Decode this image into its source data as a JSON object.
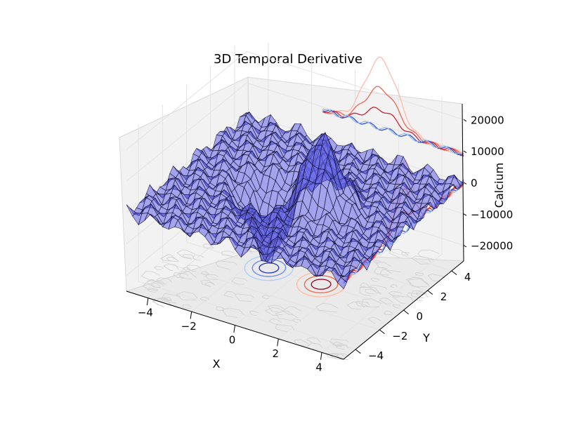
{
  "chart_data": {
    "type": "surface3d",
    "title": "3D Temporal Derivative",
    "xlabel": "X",
    "ylabel": "Y",
    "zlabel": "Calcium",
    "xlim": [
      -5,
      5
    ],
    "ylim": [
      -5,
      5
    ],
    "zlim": [
      -25000,
      25000
    ],
    "x_ticks": [
      "−4",
      "−2",
      "0",
      "2",
      "4"
    ],
    "x_tick_values": [
      -4,
      -2,
      0,
      2,
      4
    ],
    "y_ticks": [
      "−4",
      "−2",
      "0",
      "2",
      "4"
    ],
    "y_tick_values": [
      -4,
      -2,
      0,
      2,
      4
    ],
    "z_ticks": [
      "−20000",
      "−10000",
      "0",
      "10000",
      "20000"
    ],
    "z_tick_values": [
      -20000,
      -10000,
      0,
      10000,
      20000
    ],
    "surface_peaks": [
      {
        "x": 1.2,
        "y": 0,
        "z": 22000
      },
      {
        "x": -1.2,
        "y": 0,
        "z": -22000
      }
    ],
    "floor_contours": [
      {
        "center_x": -1.2,
        "center_y": 0,
        "sign": "negative",
        "colors": [
          "#aaccff",
          "#6688ee",
          "#2233bb"
        ]
      },
      {
        "center_x": 1.2,
        "center_y": 0,
        "sign": "positive",
        "colors": [
          "#ffbb99",
          "#ee6644",
          "#990022"
        ]
      }
    ],
    "grid": true,
    "colors": {
      "surface": "#6464eb",
      "positive": "#cc2222",
      "negative": "#2233cc"
    }
  }
}
